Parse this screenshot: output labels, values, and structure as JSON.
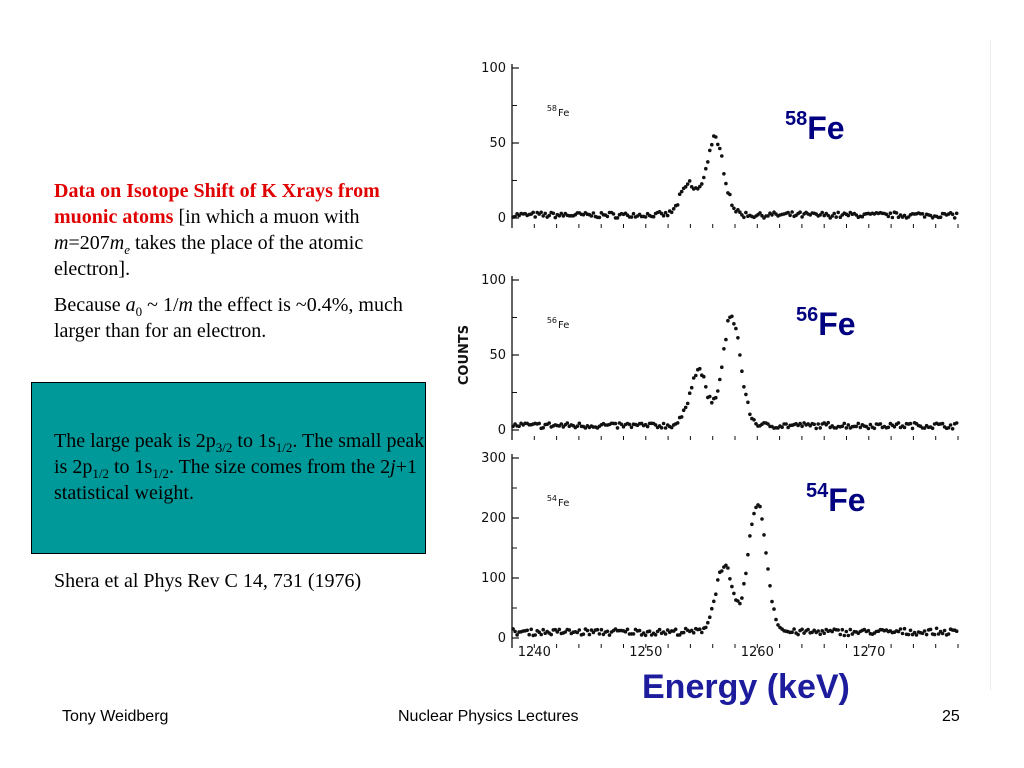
{
  "slide": {
    "title_red": "Data on Isotope Shift of K Xrays from muonic atoms",
    "intro_a": " [in which a muon with ",
    "m_sym": "m",
    "eq_num": "=207",
    "me_sym": "m",
    "me_sub": "e",
    "intro_b": " takes the place of the atomic electron].",
    "because": "Because ",
    "a0_sym": "a",
    "a0_sub": "0",
    "tilde": " ~ 1/",
    "m2_sym": "m",
    "effect": " the effect is ~0.4%, much larger than for an electron.",
    "large_a": "The large peak is 2p",
    "large_sub1": "3/2",
    "large_b": " to 1s",
    "large_sub2": "1/2",
    "large_c": ". The small peak is 2p",
    "small_sub1": "1/2",
    "small_b": " to 1s",
    "small_sub2": "1/2",
    "small_c": ". The size comes from the 2",
    "j_sym": "j",
    "stat": "+1 statistical weight.",
    "reference": "Shera et al Phys Rev C 14, 731 (1976)",
    "footer_left": "Tony Weidberg",
    "footer_center": "Nuclear Physics Lectures",
    "footer_right": "25",
    "energy_label": "Energy (keV)"
  },
  "labels": {
    "fe58_mass": "58",
    "fe56_mass": "56",
    "fe54_mass": "54",
    "element": "Fe"
  },
  "colors": {
    "red": "#e00000",
    "teal": "#009999",
    "label_blue": "#000080",
    "energy_blue": "#1c1c9c"
  },
  "chart_data": [
    {
      "type": "scatter",
      "panel_label": {
        "mass": "58",
        "element": "Fe"
      },
      "ylabel": "",
      "xlim": [
        1238,
        1278
      ],
      "ylim": [
        0,
        100
      ],
      "yticks": [
        0,
        50,
        100
      ],
      "baseline": 2,
      "peaks": [
        {
          "center": 1253.8,
          "height": 20,
          "width": 0.7
        },
        {
          "center": 1256.2,
          "height": 50,
          "width": 0.8
        }
      ]
    },
    {
      "type": "scatter",
      "panel_label": {
        "mass": "56",
        "element": "Fe"
      },
      "ylabel": "COUNTS",
      "xlim": [
        1238,
        1278
      ],
      "ylim": [
        0,
        100
      ],
      "yticks": [
        0,
        50,
        100
      ],
      "baseline": 3,
      "peaks": [
        {
          "center": 1254.7,
          "height": 37,
          "width": 0.75
        },
        {
          "center": 1257.7,
          "height": 72,
          "width": 0.8
        }
      ]
    },
    {
      "type": "scatter",
      "panel_label": {
        "mass": "54",
        "element": "Fe"
      },
      "ylabel": "",
      "xlim": [
        1238,
        1278
      ],
      "ylim": [
        0,
        300
      ],
      "yticks": [
        0,
        100,
        200,
        300
      ],
      "xticks": [
        1240,
        1250,
        1260,
        1270
      ],
      "xlabel": "",
      "baseline": 10,
      "peaks": [
        {
          "center": 1257.0,
          "height": 110,
          "width": 0.75
        },
        {
          "center": 1260.0,
          "height": 215,
          "width": 0.8
        }
      ]
    }
  ]
}
